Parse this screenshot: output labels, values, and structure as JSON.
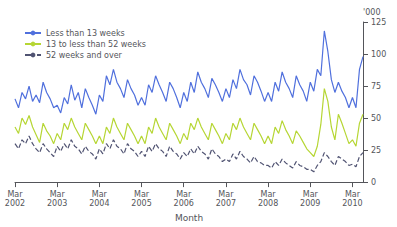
{
  "chart_data": {
    "type": "line",
    "xlabel": "Month",
    "ylabel": "'000",
    "categories": [
      "Mar\n2002",
      null,
      null,
      null,
      null,
      null,
      null,
      null,
      null,
      null,
      null,
      null,
      "Mar\n2003",
      null,
      null,
      null,
      null,
      null,
      null,
      null,
      null,
      null,
      null,
      null,
      "Mar\n2004",
      null,
      null,
      null,
      null,
      null,
      null,
      null,
      null,
      null,
      null,
      null,
      "Mar\n2005",
      null,
      null,
      null,
      null,
      null,
      null,
      null,
      null,
      null,
      null,
      null,
      "Mar\n2006",
      null,
      null,
      null,
      null,
      null,
      null,
      null,
      null,
      null,
      null,
      null,
      "Mar\n2007",
      null,
      null,
      null,
      null,
      null,
      null,
      null,
      null,
      null,
      null,
      null,
      "Mar\n2008",
      null,
      null,
      null,
      null,
      null,
      null,
      null,
      null,
      null,
      null,
      null,
      "Mar\n2009",
      null,
      null,
      null,
      null,
      null,
      null,
      null,
      null,
      null,
      null,
      null,
      "Mar\n2010",
      null,
      null,
      null
    ],
    "series": [
      {
        "name": "Less than 13 weeks",
        "line_style": "solid",
        "values": [
          65,
          58,
          70,
          65,
          75,
          63,
          68,
          62,
          78,
          70,
          65,
          58,
          60,
          54,
          66,
          61,
          76,
          64,
          70,
          58,
          73,
          66,
          60,
          53,
          68,
          63,
          83,
          76,
          88,
          78,
          73,
          66,
          80,
          73,
          68,
          60,
          66,
          60,
          76,
          70,
          83,
          76,
          70,
          63,
          78,
          73,
          66,
          58,
          70,
          63,
          78,
          70,
          86,
          78,
          73,
          66,
          81,
          76,
          70,
          63,
          73,
          66,
          80,
          73,
          88,
          80,
          76,
          68,
          83,
          78,
          71,
          63,
          70,
          63,
          78,
          71,
          86,
          78,
          73,
          66,
          83,
          76,
          71,
          63,
          78,
          71,
          88,
          83,
          118,
          102,
          80,
          70,
          78,
          71,
          66,
          58,
          66,
          58,
          88,
          98
        ]
      },
      {
        "name": "13 to less than 52 weeks",
        "line_style": "solid",
        "values": [
          43,
          38,
          50,
          45,
          52,
          43,
          37,
          31,
          46,
          40,
          36,
          30,
          38,
          33,
          46,
          41,
          50,
          43,
          38,
          33,
          46,
          41,
          36,
          30,
          36,
          30,
          43,
          38,
          50,
          43,
          38,
          33,
          46,
          41,
          36,
          30,
          36,
          30,
          43,
          38,
          50,
          43,
          38,
          33,
          46,
          41,
          36,
          30,
          38,
          33,
          46,
          41,
          50,
          43,
          38,
          33,
          46,
          41,
          36,
          30,
          38,
          33,
          46,
          41,
          50,
          43,
          38,
          33,
          46,
          41,
          36,
          30,
          36,
          30,
          43,
          38,
          48,
          41,
          36,
          30,
          40,
          36,
          31,
          26,
          23,
          20,
          28,
          45,
          73,
          63,
          43,
          33,
          53,
          46,
          38,
          30,
          33,
          28,
          46,
          53
        ]
      },
      {
        "name": "52 weeks and over",
        "line_style": "dashed",
        "values": [
          30,
          26,
          33,
          30,
          36,
          30,
          26,
          23,
          30,
          26,
          23,
          20,
          28,
          24,
          30,
          26,
          33,
          28,
          26,
          22,
          28,
          24,
          22,
          18,
          26,
          22,
          30,
          26,
          33,
          28,
          26,
          22,
          30,
          26,
          24,
          20,
          24,
          20,
          28,
          24,
          30,
          26,
          24,
          20,
          28,
          24,
          22,
          18,
          23,
          20,
          26,
          22,
          28,
          24,
          22,
          18,
          26,
          22,
          20,
          16,
          18,
          16,
          22,
          18,
          24,
          20,
          18,
          15,
          20,
          16,
          15,
          13,
          13,
          11,
          16,
          13,
          18,
          15,
          13,
          11,
          16,
          13,
          12,
          10,
          10,
          8,
          13,
          16,
          23,
          20,
          16,
          13,
          20,
          18,
          16,
          13,
          14,
          12,
          20,
          23
        ]
      }
    ],
    "ylim": [
      0,
      125
    ],
    "yticks": [
      0,
      25,
      50,
      75,
      100,
      125
    ],
    "grid": false,
    "legend": "upper left"
  }
}
